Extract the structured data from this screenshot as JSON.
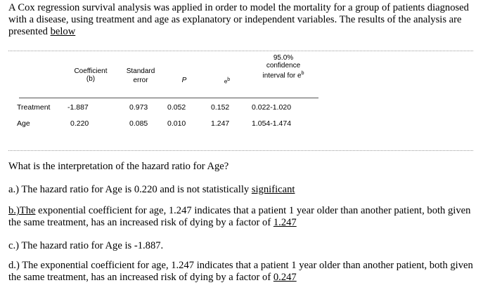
{
  "intro": {
    "text_before_link": "A Cox regression survival analysis was applied in order to model the mortality for a group of patients diagnosed with a disease, using treatment and age as explanatory or independent variables. The results of the analysis are presented ",
    "link_text": "below"
  },
  "table": {
    "headers": {
      "coefficient": "Coefficient",
      "coefficient_sub": "(b)",
      "standard": "Standard",
      "standard_sub": "error",
      "p": "P",
      "eb": "eb",
      "ci_pct": "95.0%",
      "ci_label": "confidence",
      "ci_sub": "interval for eb"
    },
    "rows": [
      {
        "label": "Treatment",
        "coef": "-1.887",
        "se": "0.973",
        "p": "0.052",
        "eb": "0.152",
        "ci": "0.022-1.020"
      },
      {
        "label": "Age",
        "coef": "0.220",
        "se": "0.085",
        "p": "0.010",
        "eb": "1.247",
        "ci": "1.054-1.474"
      }
    ]
  },
  "question": "What is the interpretation of the hazard ratio for Age?",
  "options": {
    "a_text": "a.) The hazard ratio for Age is 0.220 and is not statistically ",
    "a_link": "significant",
    "b_link": "b.)The",
    "b_text": " exponential coefficient for age, 1.247 indicates that a patient 1 year older than another patient, both given the same treatment, has an increased risk of dying by a factor of ",
    "b_link_end": "1.247",
    "c_text": "c.) The hazard ratio for Age is -1.887.",
    "d_text": "d.) The exponential coefficient for age, 1.247 indicates that a patient 1 year older than another patient, both given the same treatment, has an increased risk of dying by a factor of ",
    "d_link_end": "0.247"
  }
}
